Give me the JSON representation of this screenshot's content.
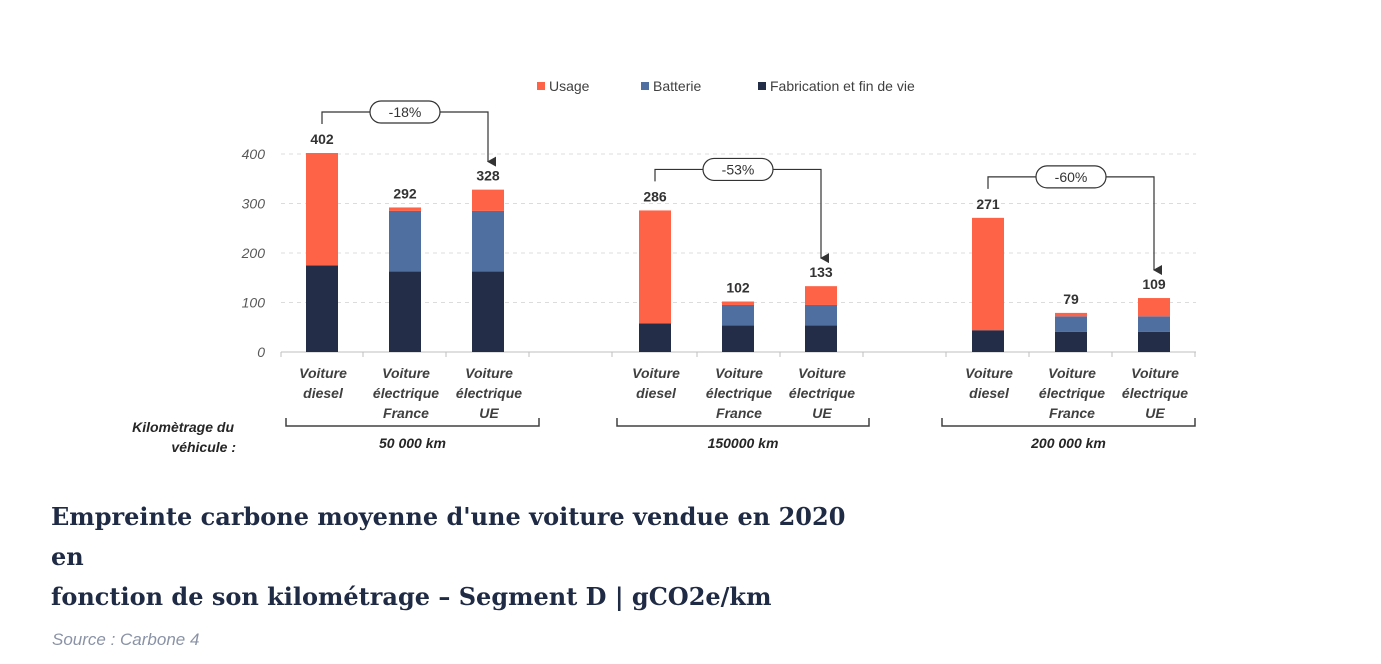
{
  "chart_data": {
    "type": "bar",
    "stacked": true,
    "ylim": [
      0,
      400
    ],
    "yticks": [
      0,
      100,
      200,
      300,
      400
    ],
    "grid": true,
    "legend_position": "top",
    "kilometrage_label": [
      "Kilomètrage du",
      "véhicule :"
    ],
    "legend": [
      {
        "key": "usage",
        "label": "Usage",
        "color": "#ff6347"
      },
      {
        "key": "batterie",
        "label": "Batterie",
        "color": "#4f6fa0"
      },
      {
        "key": "fabrication",
        "label": "Fabrication et fin de vie",
        "color": "#242d48"
      }
    ],
    "groups": [
      {
        "label": "50 000 km",
        "comparison": "-18%",
        "bars": [
          {
            "category": [
              "Voiture",
              "diesel"
            ],
            "total": "402",
            "fabrication": 175,
            "batterie": 0,
            "usage": 227
          },
          {
            "category": [
              "Voiture",
              "électrique",
              "France"
            ],
            "total": "292",
            "fabrication": 163,
            "batterie": 122,
            "usage": 7
          },
          {
            "category": [
              "Voiture",
              "électrique",
              "UE"
            ],
            "total": "328",
            "fabrication": 163,
            "batterie": 122,
            "usage": 43
          }
        ]
      },
      {
        "label": "150000 km",
        "comparison": "-53%",
        "bars": [
          {
            "category": [
              "Voiture",
              "diesel"
            ],
            "total": "286",
            "fabrication": 58,
            "batterie": 0,
            "usage": 228
          },
          {
            "category": [
              "Voiture",
              "électrique",
              "France"
            ],
            "total": "102",
            "fabrication": 54,
            "batterie": 41,
            "usage": 7
          },
          {
            "category": [
              "Voiture",
              "électrique",
              "UE"
            ],
            "total": "133",
            "fabrication": 54,
            "batterie": 41,
            "usage": 38
          }
        ]
      },
      {
        "label": "200 000 km",
        "comparison": "-60%",
        "bars": [
          {
            "category": [
              "Voiture",
              "diesel"
            ],
            "total": "271",
            "fabrication": 44,
            "batterie": 0,
            "usage": 227
          },
          {
            "category": [
              "Voiture",
              "électrique",
              "France"
            ],
            "total": "79",
            "fabrication": 41,
            "batterie": 31,
            "usage": 7
          },
          {
            "category": [
              "Voiture",
              "électrique",
              "UE"
            ],
            "total": "109",
            "fabrication": 41,
            "batterie": 31,
            "usage": 37
          }
        ]
      }
    ]
  },
  "caption": {
    "line1": "Empreinte carbone moyenne d'une voiture vendue en 2020 en",
    "line2": "fonction de son kilométrage – Segment D | gCO2e/km"
  },
  "source": "Source : Carbone 4"
}
